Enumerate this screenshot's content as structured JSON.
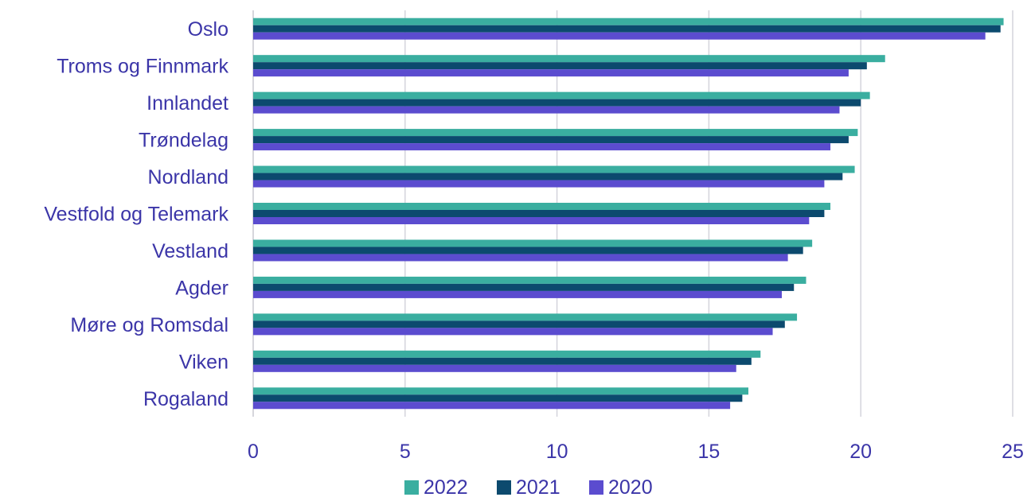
{
  "chart_data": {
    "type": "bar",
    "orientation": "horizontal",
    "categories": [
      "Oslo",
      "Troms og Finnmark",
      "Innlandet",
      "Trøndelag",
      "Nordland",
      "Vestfold og Telemark",
      "Vestland",
      "Agder",
      "Møre og Romsdal",
      "Viken",
      "Rogaland"
    ],
    "series": [
      {
        "name": "2022",
        "color": "#3aaea0",
        "values": [
          24.7,
          20.8,
          20.3,
          19.9,
          19.8,
          19.0,
          18.4,
          18.2,
          17.9,
          16.7,
          16.3
        ]
      },
      {
        "name": "2021",
        "color": "#0c4a6e",
        "values": [
          24.6,
          20.2,
          20.0,
          19.6,
          19.4,
          18.8,
          18.1,
          17.8,
          17.5,
          16.4,
          16.1
        ]
      },
      {
        "name": "2020",
        "color": "#5b4ccf",
        "values": [
          24.1,
          19.6,
          19.3,
          19.0,
          18.8,
          18.3,
          17.6,
          17.4,
          17.1,
          15.9,
          15.7
        ]
      }
    ],
    "xlim": [
      0,
      25
    ],
    "xticks": [
      "0",
      "5",
      "10",
      "15",
      "20",
      "25"
    ],
    "grid": true,
    "legend_position": "bottom",
    "title": "",
    "xlabel": "",
    "ylabel": ""
  }
}
